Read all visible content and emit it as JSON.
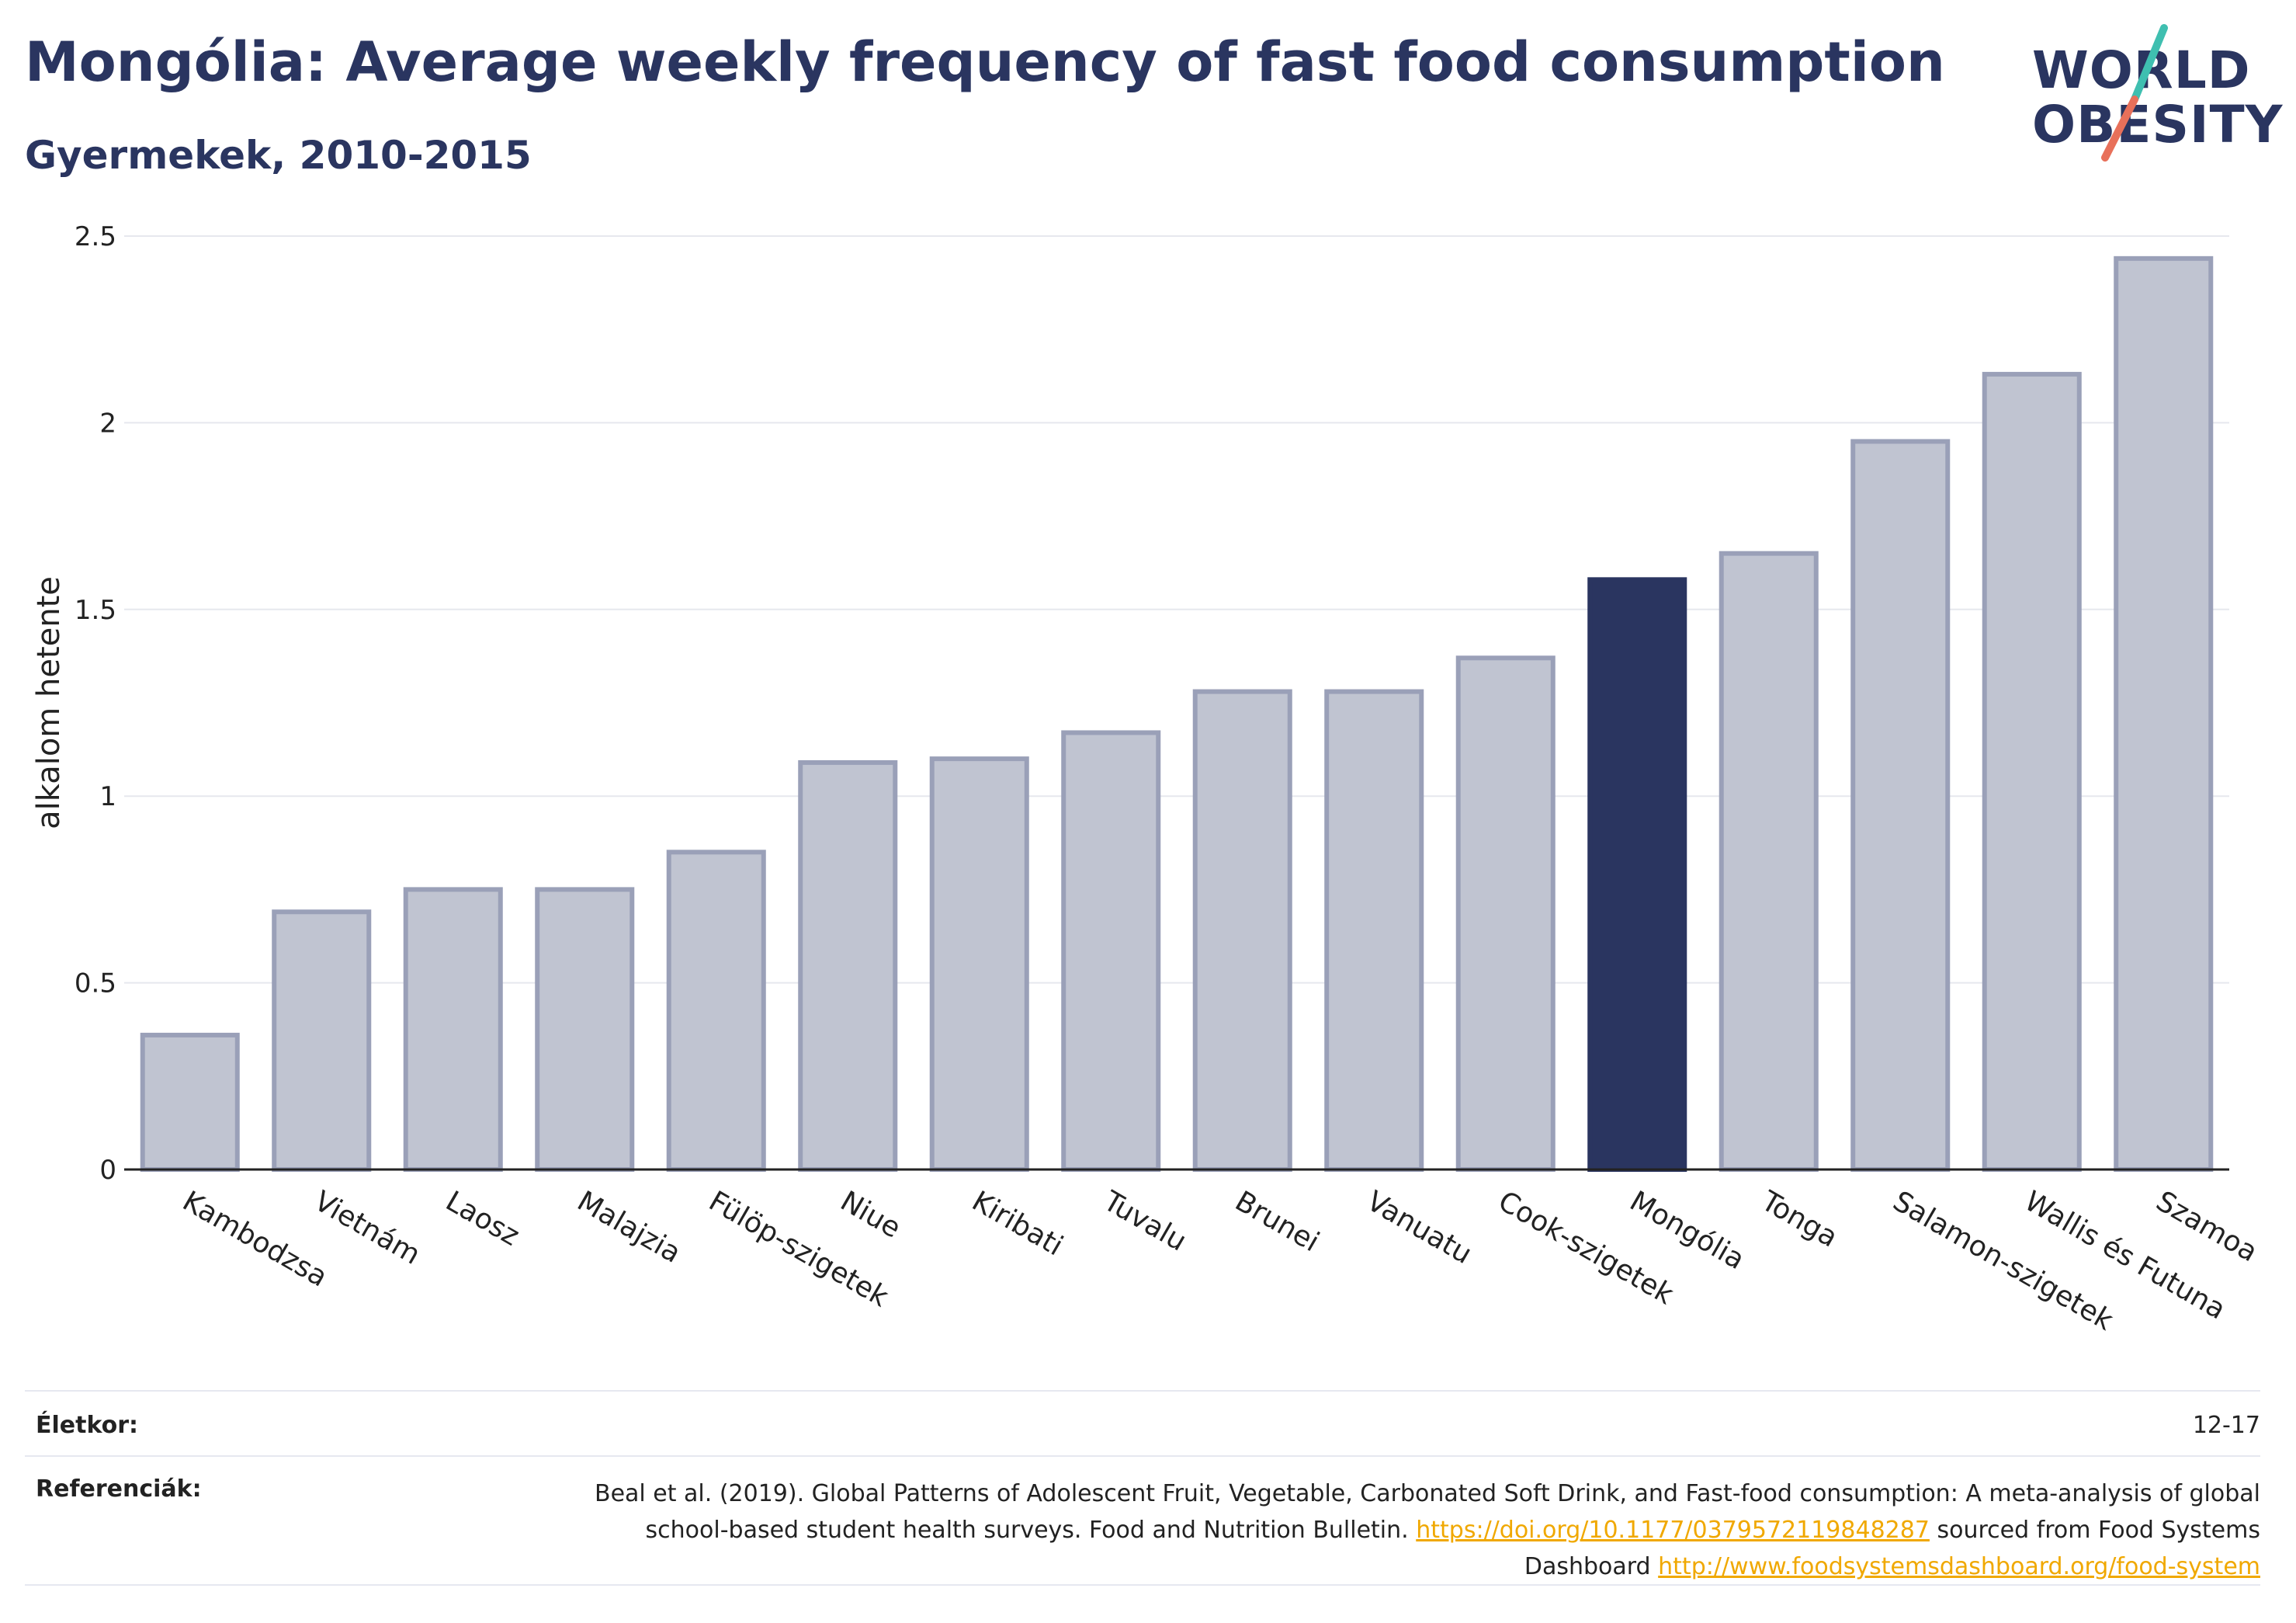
{
  "header": {
    "title": "Mongólia: Average weekly frequency of fast food consumption",
    "subtitle": "Gyermekek, 2010-2015"
  },
  "logo": {
    "line1": "WORLD",
    "line2": "OBESITY",
    "accent_colors": [
      "#3fbfb0",
      "#e8705a"
    ]
  },
  "chart_data": {
    "type": "bar",
    "categories": [
      "Kambodzsa",
      "Vietnám",
      "Laosz",
      "Malajzia",
      "Fülöp-szigetek",
      "Niue",
      "Kiribati",
      "Tuvalu",
      "Brunei",
      "Vanuatu",
      "Cook-szigetek",
      "Mongólia",
      "Tonga",
      "Salamon-szigetek",
      "Wallis és Futuna",
      "Szamoa"
    ],
    "values": [
      0.36,
      0.69,
      0.75,
      0.75,
      0.85,
      1.09,
      1.1,
      1.17,
      1.28,
      1.28,
      1.37,
      1.58,
      1.65,
      1.95,
      2.13,
      2.44
    ],
    "highlight": "Mongólia",
    "ylabel": "alkalom hetente",
    "ylim": [
      0,
      2.5
    ],
    "yticks": [
      0,
      0.5,
      1,
      1.5,
      2,
      2.5
    ],
    "ytick_labels": [
      "0",
      "0.5",
      "1",
      "1.5",
      "2",
      "2.5"
    ],
    "grid": true,
    "colors": {
      "bar": "#c0c4d1",
      "bar_edge": "#9aa0b8",
      "highlight": "#2a3560"
    }
  },
  "meta": {
    "age_label": "Életkor:",
    "age_value": "12-17",
    "ref_label": "Referenciák:",
    "ref_text_1": "Beal et al. (2019). Global Patterns of Adolescent Fruit, Vegetable, Carbonated Soft Drink, and Fast-food consumption: A meta-analysis of global school-based student health surveys. Food and Nutrition Bulletin.",
    "ref_link_1": "https://doi.org/10.1177/0379572119848287",
    "ref_text_2": "sourced from Food Systems Dashboard",
    "ref_link_2": "http://www.foodsystemsdashboard.org/food-system"
  }
}
